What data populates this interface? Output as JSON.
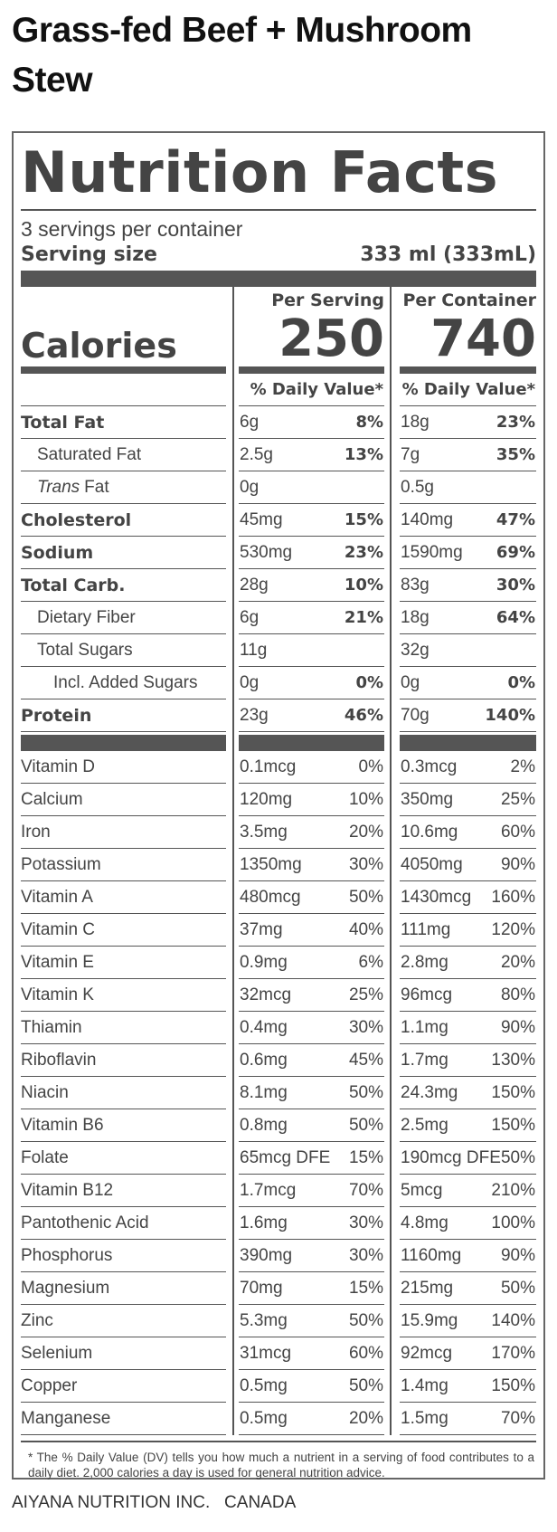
{
  "title": "Grass-fed Beef + Mushroom Stew",
  "label": {
    "heading": "Nutrition Facts",
    "servings": "3 servings per container",
    "serving_size_label": "Serving size",
    "serving_size": "333 ml (333mL)",
    "per_serving_header": "Per Serving",
    "per_container_header": "Per Container",
    "calories_label": "Calories",
    "calories_serving": "250",
    "calories_container": "740",
    "dv_header": "% Daily Value*",
    "nutrients": [
      {
        "name": "Total Fat",
        "bold": true,
        "indent": 0,
        "serving": "6g",
        "serving_dv": "8%",
        "container": "18g",
        "container_dv": "23%"
      },
      {
        "name": "Saturated Fat",
        "bold": false,
        "indent": 1,
        "serving": "2.5g",
        "serving_dv": "13%",
        "container": "7g",
        "container_dv": "35%"
      },
      {
        "name_italic": "Trans",
        "name": "Fat",
        "bold": false,
        "indent": 1,
        "serving": "0g",
        "container": "0.5g"
      },
      {
        "name": "Cholesterol",
        "bold": true,
        "indent": 0,
        "serving": "45mg",
        "serving_dv": "15%",
        "container": "140mg",
        "container_dv": "47%"
      },
      {
        "name": "Sodium",
        "bold": true,
        "indent": 0,
        "serving": "530mg",
        "serving_dv": "23%",
        "container": "1590mg",
        "container_dv": "69%"
      },
      {
        "name": "Total Carb.",
        "bold": true,
        "indent": 0,
        "serving": "28g",
        "serving_dv": "10%",
        "container": "83g",
        "container_dv": "30%"
      },
      {
        "name": "Dietary Fiber",
        "bold": false,
        "indent": 1,
        "serving": "6g",
        "serving_dv": "21%",
        "container": "18g",
        "container_dv": "64%"
      },
      {
        "name": "Total Sugars",
        "bold": false,
        "indent": 1,
        "serving": "11g",
        "container": "32g"
      },
      {
        "name": "Incl. Added Sugars",
        "bold": false,
        "indent": 2,
        "serving": "0g",
        "serving_dv": "0%",
        "container": "0g",
        "container_dv": "0%"
      },
      {
        "name": "Protein",
        "bold": true,
        "indent": 0,
        "serving": "23g",
        "serving_dv": "46%",
        "container": "70g",
        "container_dv": "140%"
      }
    ],
    "vitamins": [
      {
        "name": "Vitamin D",
        "serving": "0.1mcg",
        "serving_dv": "0%",
        "container": "0.3mcg",
        "container_dv": "2%"
      },
      {
        "name": "Calcium",
        "serving": "120mg",
        "serving_dv": "10%",
        "container": "350mg",
        "container_dv": "25%"
      },
      {
        "name": "Iron",
        "serving": "3.5mg",
        "serving_dv": "20%",
        "container": "10.6mg",
        "container_dv": "60%"
      },
      {
        "name": "Potassium",
        "serving": "1350mg",
        "serving_dv": "30%",
        "container": "4050mg",
        "container_dv": "90%"
      },
      {
        "name": "Vitamin A",
        "serving": "480mcg",
        "serving_dv": "50%",
        "container": "1430mcg",
        "container_dv": "160%"
      },
      {
        "name": "Vitamin C",
        "serving": "37mg",
        "serving_dv": "40%",
        "container": "111mg",
        "container_dv": "120%"
      },
      {
        "name": "Vitamin E",
        "serving": "0.9mg",
        "serving_dv": "6%",
        "container": "2.8mg",
        "container_dv": "20%"
      },
      {
        "name": "Vitamin K",
        "serving": "32mcg",
        "serving_dv": "25%",
        "container": "96mcg",
        "container_dv": "80%"
      },
      {
        "name": "Thiamin",
        "serving": "0.4mg",
        "serving_dv": "30%",
        "container": "1.1mg",
        "container_dv": "90%"
      },
      {
        "name": "Riboflavin",
        "serving": "0.6mg",
        "serving_dv": "45%",
        "container": "1.7mg",
        "container_dv": "130%"
      },
      {
        "name": "Niacin",
        "serving": "8.1mg",
        "serving_dv": "50%",
        "container": "24.3mg",
        "container_dv": "150%"
      },
      {
        "name": "Vitamin B6",
        "serving": "0.8mg",
        "serving_dv": "50%",
        "container": "2.5mg",
        "container_dv": "150%"
      },
      {
        "name": "Folate",
        "serving": "65mcg DFE",
        "serving_dv": "15%",
        "container": "190mcg DFE",
        "container_dv": "50%"
      },
      {
        "name": "Vitamin B12",
        "serving": "1.7mcg",
        "serving_dv": "70%",
        "container": "5mcg",
        "container_dv": "210%"
      },
      {
        "name": "Pantothenic Acid",
        "serving": "1.6mg",
        "serving_dv": "30%",
        "container": "4.8mg",
        "container_dv": "100%"
      },
      {
        "name": "Phosphorus",
        "serving": "390mg",
        "serving_dv": "30%",
        "container": "1160mg",
        "container_dv": "90%"
      },
      {
        "name": "Magnesium",
        "serving": "70mg",
        "serving_dv": "15%",
        "container": "215mg",
        "container_dv": "50%"
      },
      {
        "name": "Zinc",
        "serving": "5.3mg",
        "serving_dv": "50%",
        "container": "15.9mg",
        "container_dv": "140%"
      },
      {
        "name": "Selenium",
        "serving": "31mcg",
        "serving_dv": "60%",
        "container": "92mcg",
        "container_dv": "170%"
      },
      {
        "name": "Copper",
        "serving": "0.5mg",
        "serving_dv": "50%",
        "container": "1.4mg",
        "container_dv": "150%"
      },
      {
        "name": "Manganese",
        "serving": "0.5mg",
        "serving_dv": "20%",
        "container": "1.5mg",
        "container_dv": "70%"
      }
    ],
    "footnote": "* The % Daily Value (DV) tells you how much a nutrient in a serving of food contributes to a daily diet. 2,000 calories a day is used for general nutrition advice."
  },
  "footer": "AIYANA NUTRITION INC.   CANADA"
}
